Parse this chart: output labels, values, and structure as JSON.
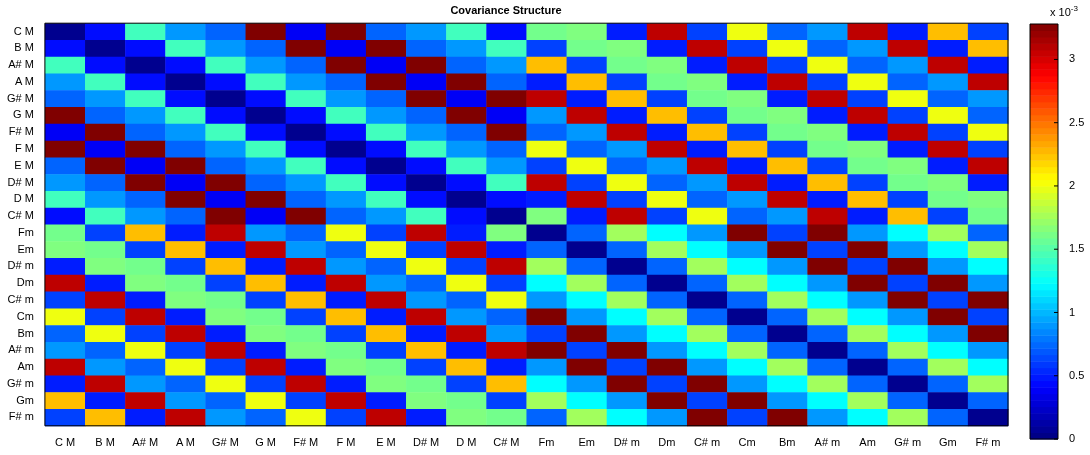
{
  "chart_data": {
    "type": "heatmap",
    "title": "Covariance Structure",
    "clabel": "x 10$^{-3}$",
    "categories": [
      "C M",
      "B M",
      "A# M",
      "A M",
      "G# M",
      "G M",
      "F# M",
      "F M",
      "E M",
      "D# M",
      "D M",
      "C# M",
      "Fm",
      "Em",
      "D# m",
      "Dm",
      "C# m",
      "Cm",
      "Bm",
      "A# m",
      "Am",
      "G# m",
      "Gm",
      "F# m"
    ],
    "y_categories": [
      "C M",
      "B M",
      "A# M",
      "A M",
      "G# M",
      "G M",
      "F# M",
      "F M",
      "E M",
      "D# M",
      "D M",
      "C# M",
      "Fm",
      "Em",
      "D# m",
      "Dm",
      "C# m",
      "Cm",
      "Bm",
      "A# m",
      "Am",
      "G# m",
      "Gm",
      "F# m"
    ],
    "clim": [
      0,
      3.28
    ],
    "cticks": [
      0,
      0.5,
      1,
      1.5,
      2,
      2.5,
      3
    ],
    "cells": [
      [
        0.05,
        0.45,
        1.44,
        0.9,
        0.73,
        3.28,
        0.38,
        3.28,
        0.73,
        0.9,
        1.44,
        0.45,
        1.6,
        1.64,
        0.5,
        3.08,
        0.62,
        2.0,
        0.73,
        0.9,
        3.08,
        0.5,
        2.26,
        0.62
      ],
      [
        0.45,
        0.05,
        0.45,
        1.44,
        0.9,
        0.73,
        3.28,
        0.38,
        3.28,
        0.73,
        0.9,
        1.44,
        0.62,
        1.6,
        1.64,
        0.5,
        3.08,
        0.62,
        2.0,
        0.73,
        0.9,
        3.08,
        0.5,
        2.26
      ],
      [
        1.44,
        0.45,
        0.05,
        0.45,
        1.44,
        0.9,
        0.73,
        3.28,
        0.38,
        3.28,
        0.73,
        0.9,
        2.26,
        0.62,
        1.6,
        1.64,
        0.5,
        3.08,
        0.62,
        2.0,
        0.73,
        0.9,
        3.08,
        0.5
      ],
      [
        0.9,
        1.44,
        0.45,
        0.05,
        0.45,
        1.44,
        0.9,
        0.73,
        3.28,
        0.38,
        3.28,
        0.73,
        0.5,
        2.26,
        0.62,
        1.6,
        1.64,
        0.5,
        3.08,
        0.62,
        2.0,
        0.73,
        0.9,
        3.08
      ],
      [
        0.73,
        0.9,
        1.44,
        0.45,
        0.05,
        0.45,
        1.44,
        0.9,
        0.73,
        3.28,
        0.38,
        3.28,
        3.08,
        0.5,
        2.26,
        0.62,
        1.6,
        1.64,
        0.5,
        3.08,
        0.62,
        2.0,
        0.73,
        0.9
      ],
      [
        3.28,
        0.73,
        0.9,
        1.44,
        0.45,
        0.05,
        0.45,
        1.44,
        0.9,
        0.73,
        3.28,
        0.38,
        0.9,
        3.08,
        0.5,
        2.26,
        0.62,
        1.6,
        1.64,
        0.5,
        3.08,
        0.62,
        2.0,
        0.73
      ],
      [
        0.38,
        3.28,
        0.73,
        0.9,
        1.44,
        0.45,
        0.05,
        0.45,
        1.44,
        0.9,
        0.73,
        3.28,
        0.73,
        0.9,
        3.08,
        0.5,
        2.26,
        0.62,
        1.6,
        1.64,
        0.5,
        3.08,
        0.62,
        2.0
      ],
      [
        3.28,
        0.38,
        3.28,
        0.73,
        0.9,
        1.44,
        0.45,
        0.05,
        0.45,
        1.44,
        0.9,
        0.73,
        2.0,
        0.73,
        0.9,
        3.08,
        0.5,
        2.26,
        0.62,
        1.6,
        1.64,
        0.5,
        3.08,
        0.62
      ],
      [
        0.73,
        3.28,
        0.38,
        3.28,
        0.73,
        0.9,
        1.44,
        0.45,
        0.05,
        0.45,
        1.44,
        0.9,
        0.62,
        2.0,
        0.73,
        0.9,
        3.08,
        0.5,
        2.26,
        0.62,
        1.6,
        1.64,
        0.5,
        3.08
      ],
      [
        0.9,
        0.73,
        3.28,
        0.38,
        3.28,
        0.73,
        0.9,
        1.44,
        0.45,
        0.05,
        0.45,
        1.44,
        3.08,
        0.62,
        2.0,
        0.73,
        0.9,
        3.08,
        0.5,
        2.26,
        0.62,
        1.6,
        1.64,
        0.5
      ],
      [
        1.44,
        0.9,
        0.73,
        3.28,
        0.38,
        3.28,
        0.73,
        0.9,
        1.44,
        0.45,
        0.05,
        0.45,
        0.5,
        3.08,
        0.62,
        2.0,
        0.73,
        0.9,
        3.08,
        0.5,
        2.26,
        0.62,
        1.6,
        1.64
      ],
      [
        0.45,
        1.44,
        0.9,
        0.73,
        3.28,
        0.38,
        3.28,
        0.73,
        0.9,
        1.44,
        0.45,
        0.05,
        1.64,
        0.5,
        3.08,
        0.62,
        2.0,
        0.73,
        0.9,
        3.08,
        0.5,
        2.26,
        0.62,
        1.6
      ],
      [
        1.6,
        0.62,
        2.26,
        0.5,
        3.08,
        0.9,
        0.73,
        2.0,
        0.62,
        3.08,
        0.5,
        1.64,
        0.05,
        0.73,
        1.75,
        1.23,
        0.9,
        3.28,
        0.62,
        3.28,
        0.9,
        1.23,
        1.75,
        0.73
      ],
      [
        1.64,
        1.6,
        0.62,
        2.26,
        0.5,
        3.08,
        0.9,
        0.73,
        2.0,
        0.62,
        3.08,
        0.5,
        0.73,
        0.05,
        0.73,
        1.75,
        1.23,
        0.9,
        3.28,
        0.62,
        3.28,
        0.9,
        1.23,
        1.75
      ],
      [
        0.5,
        1.64,
        1.6,
        0.62,
        2.26,
        0.5,
        3.08,
        0.9,
        0.73,
        2.0,
        0.62,
        3.08,
        1.75,
        0.73,
        0.05,
        0.73,
        1.75,
        1.23,
        0.9,
        3.28,
        0.62,
        3.28,
        0.9,
        1.23
      ],
      [
        3.08,
        0.5,
        1.64,
        1.6,
        0.62,
        2.26,
        0.5,
        3.08,
        0.9,
        0.73,
        2.0,
        0.62,
        1.23,
        1.75,
        0.73,
        0.05,
        0.73,
        1.75,
        1.23,
        0.9,
        3.28,
        0.62,
        3.28,
        0.9
      ],
      [
        0.62,
        3.08,
        0.5,
        1.64,
        1.6,
        0.62,
        2.26,
        0.5,
        3.08,
        0.9,
        0.73,
        2.0,
        0.9,
        1.23,
        1.75,
        0.73,
        0.05,
        0.73,
        1.75,
        1.23,
        0.9,
        3.28,
        0.62,
        3.28
      ],
      [
        2.0,
        0.62,
        3.08,
        0.5,
        1.64,
        1.6,
        0.62,
        2.26,
        0.5,
        3.08,
        0.9,
        0.73,
        3.28,
        0.9,
        1.23,
        1.75,
        0.73,
        0.05,
        0.73,
        1.75,
        1.23,
        0.9,
        3.28,
        0.62
      ],
      [
        0.73,
        2.0,
        0.62,
        3.08,
        0.5,
        1.64,
        1.6,
        0.62,
        2.26,
        0.5,
        3.08,
        0.9,
        0.62,
        3.28,
        0.9,
        1.23,
        1.75,
        0.73,
        0.05,
        0.73,
        1.75,
        1.23,
        0.9,
        3.28
      ],
      [
        0.9,
        0.73,
        2.0,
        0.62,
        3.08,
        0.5,
        1.64,
        1.6,
        0.62,
        2.26,
        0.5,
        3.08,
        3.28,
        0.62,
        3.28,
        0.9,
        1.23,
        1.75,
        0.73,
        0.05,
        0.73,
        1.75,
        1.23,
        0.9
      ],
      [
        3.08,
        0.9,
        0.73,
        2.0,
        0.62,
        3.08,
        0.5,
        1.64,
        1.6,
        0.62,
        2.26,
        0.5,
        0.9,
        3.28,
        0.62,
        3.28,
        0.9,
        1.23,
        1.75,
        0.73,
        0.05,
        0.73,
        1.75,
        1.23
      ],
      [
        0.5,
        3.08,
        0.9,
        0.73,
        2.0,
        0.62,
        3.08,
        0.5,
        1.64,
        1.6,
        0.62,
        2.26,
        1.23,
        0.9,
        3.28,
        0.62,
        3.28,
        0.9,
        1.23,
        1.75,
        0.73,
        0.05,
        0.73,
        1.75
      ],
      [
        2.26,
        0.5,
        3.08,
        0.9,
        0.73,
        2.0,
        0.62,
        3.08,
        0.5,
        1.64,
        1.6,
        0.62,
        1.75,
        1.23,
        0.9,
        3.28,
        0.62,
        3.28,
        0.9,
        1.23,
        1.75,
        0.73,
        0.05,
        0.73
      ],
      [
        0.62,
        2.26,
        0.5,
        3.08,
        0.9,
        0.73,
        2.0,
        0.62,
        3.08,
        0.5,
        1.64,
        1.6,
        0.73,
        1.75,
        1.23,
        0.9,
        3.28,
        0.62,
        3.28,
        0.9,
        1.23,
        1.75,
        0.73,
        0.05
      ]
    ]
  }
}
